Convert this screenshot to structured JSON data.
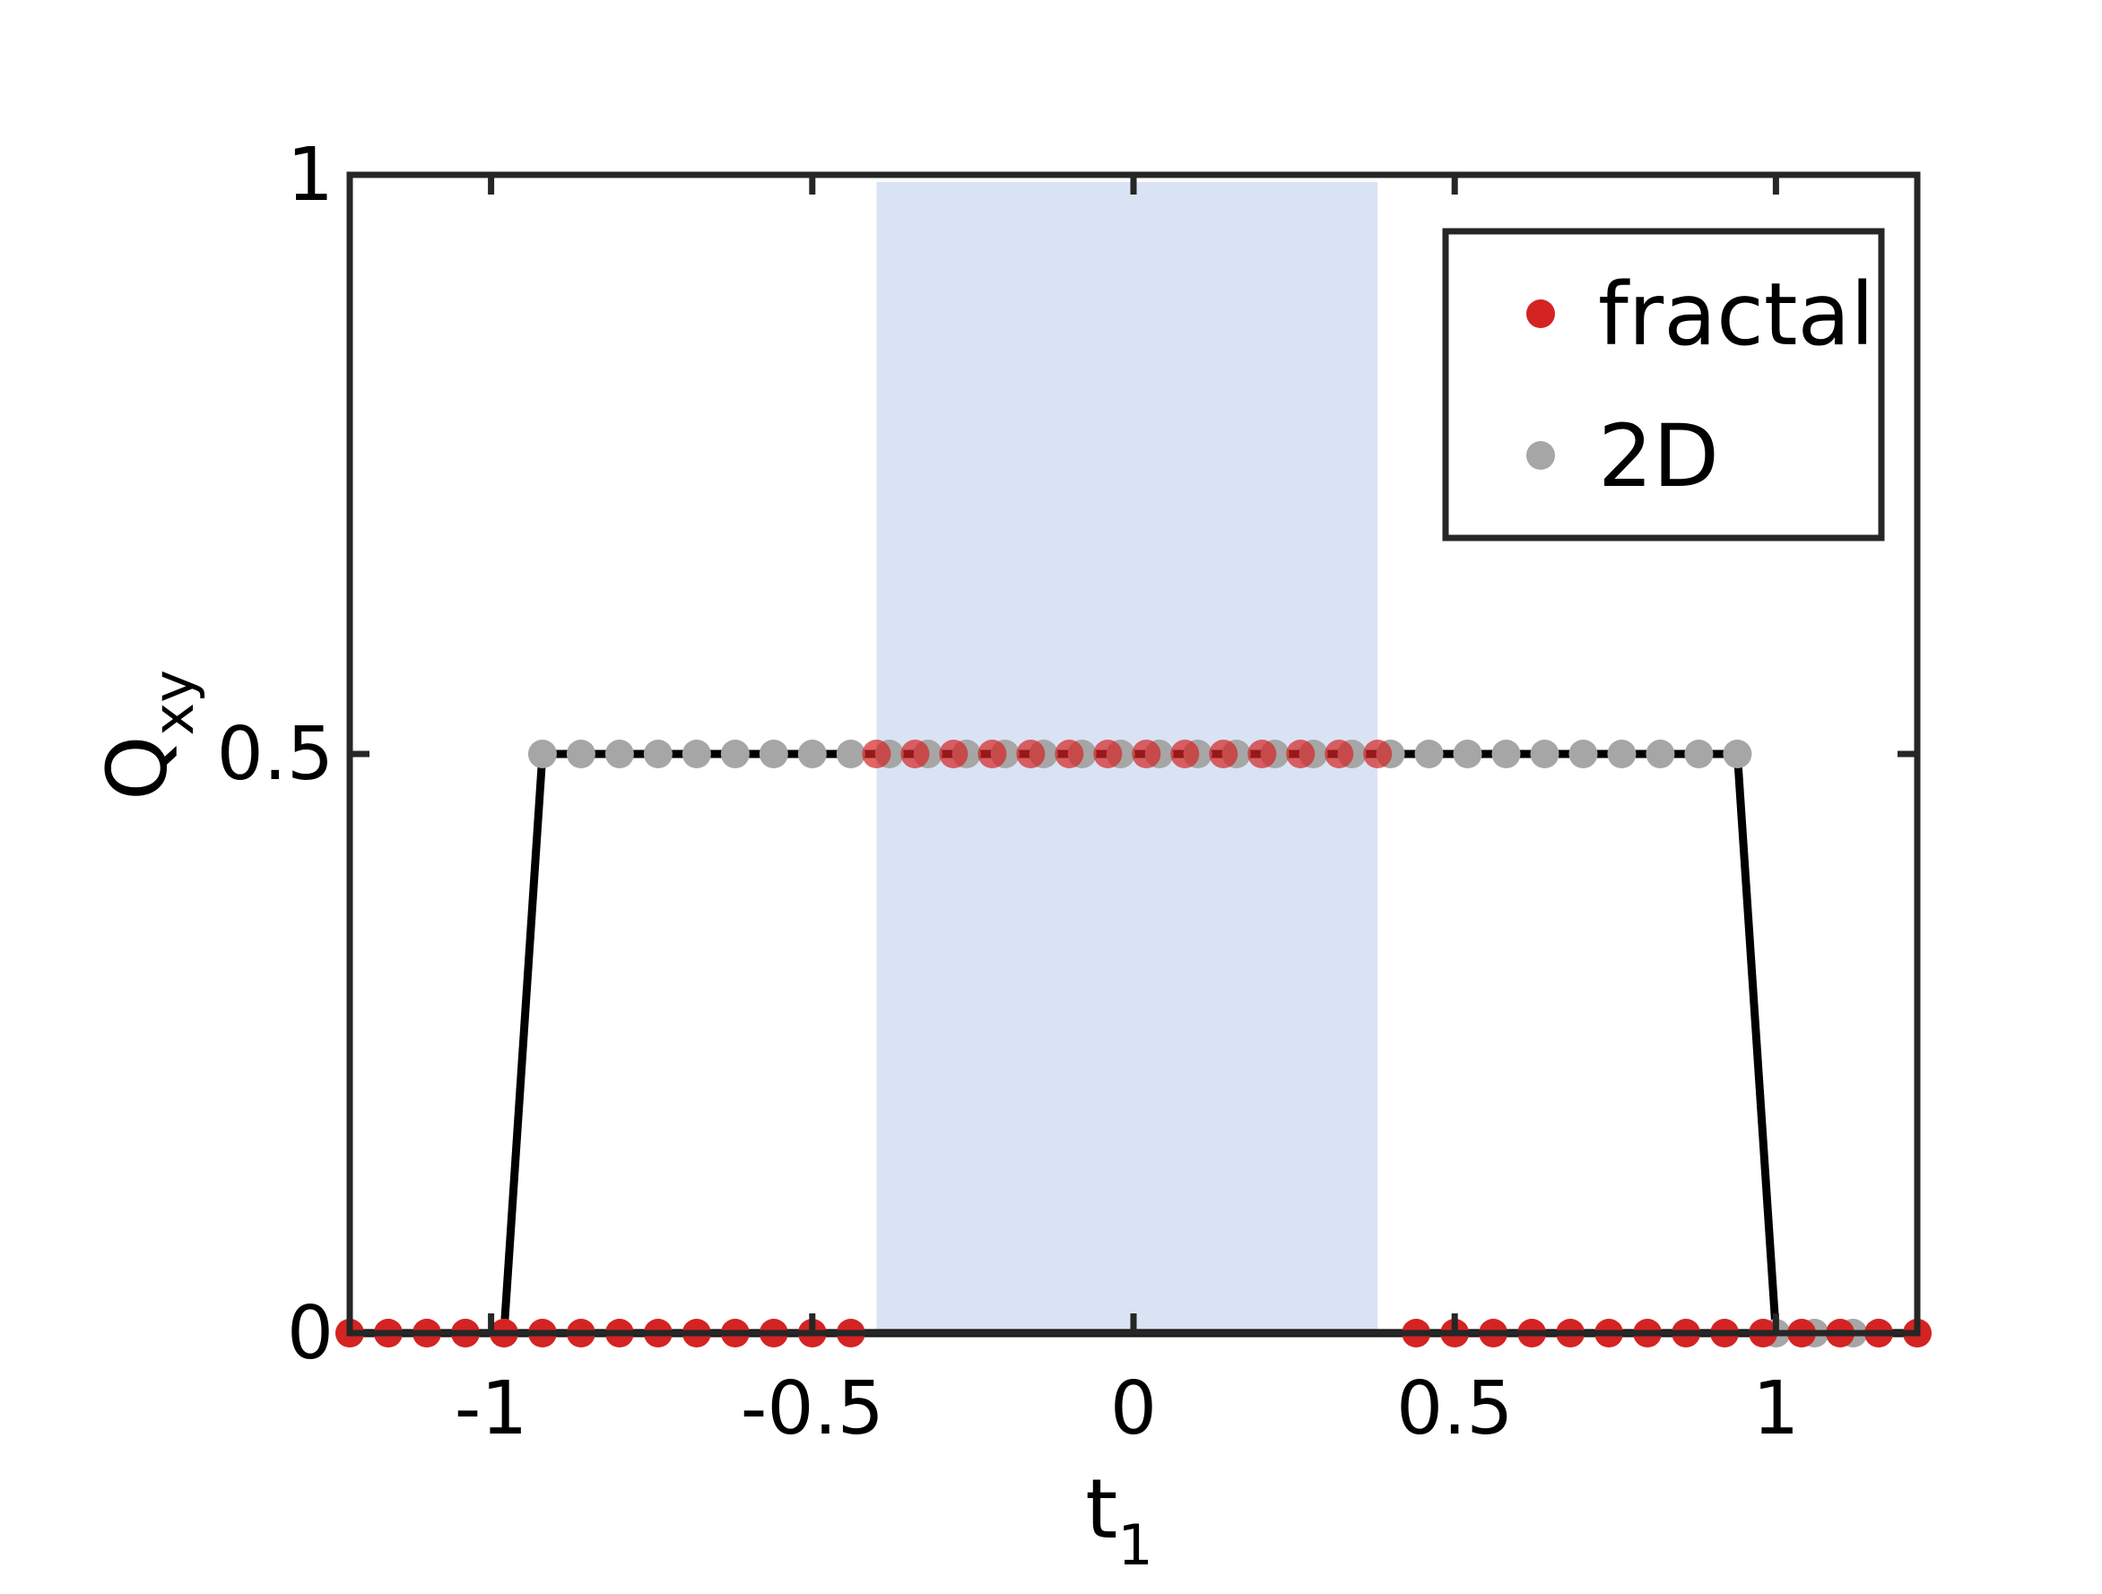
{
  "chart_data": {
    "type": "scatter",
    "xlabel": "t",
    "xlabel_sub": "1",
    "ylabel": "Q",
    "ylabel_sub": "xy",
    "xlim": [
      -1.22,
      1.22
    ],
    "ylim": [
      0,
      1
    ],
    "xticks": [
      -1,
      -0.5,
      0,
      0.5,
      1
    ],
    "xtick_labels": [
      "-1",
      "-0.5",
      "0",
      "0.5",
      "1"
    ],
    "yticks": [
      0,
      0.5,
      1
    ],
    "ytick_labels": [
      "0",
      "0.5",
      "1"
    ],
    "grid": false,
    "legend_position": "top-right",
    "shaded_region": {
      "x": [
        -0.4,
        0.38
      ],
      "color": "#dae3f3"
    },
    "series": [
      {
        "name": "fractal",
        "color": "#d42323",
        "line": false,
        "x": [
          -1.22,
          -1.16,
          -1.1,
          -1.04,
          -0.98,
          -0.92,
          -0.86,
          -0.8,
          -0.74,
          -0.68,
          -0.62,
          -0.56,
          -0.5,
          -0.44,
          -0.4,
          -0.34,
          -0.28,
          -0.22,
          -0.16,
          -0.1,
          -0.04,
          0.02,
          0.08,
          0.14,
          0.2,
          0.26,
          0.32,
          0.38,
          0.44,
          0.5,
          0.56,
          0.62,
          0.68,
          0.74,
          0.8,
          0.86,
          0.92,
          0.98,
          1.04,
          1.1,
          1.16,
          1.22
        ],
        "y": [
          0,
          0,
          0,
          0,
          0,
          0,
          0,
          0,
          0,
          0,
          0,
          0,
          0,
          0,
          0.5,
          0.5,
          0.5,
          0.5,
          0.5,
          0.5,
          0.5,
          0.5,
          0.5,
          0.5,
          0.5,
          0.5,
          0.5,
          0.5,
          0,
          0,
          0,
          0,
          0,
          0,
          0,
          0,
          0,
          0,
          0,
          0,
          0,
          0
        ]
      },
      {
        "name": "2D",
        "color": "#a6a6a6",
        "line": true,
        "line_color": "#000000",
        "x": [
          -1.22,
          -1.16,
          -1.1,
          -1.04,
          -0.98,
          -0.92,
          -0.86,
          -0.8,
          -0.74,
          -0.68,
          -0.62,
          -0.56,
          -0.5,
          -0.44,
          -0.38,
          -0.32,
          -0.26,
          -0.2,
          -0.14,
          -0.08,
          -0.02,
          0.04,
          0.1,
          0.16,
          0.22,
          0.28,
          0.34,
          0.4,
          0.46,
          0.52,
          0.58,
          0.64,
          0.7,
          0.76,
          0.82,
          0.88,
          0.94,
          1.0,
          1.06,
          1.12,
          1.16,
          1.22
        ],
        "y": [
          0,
          0,
          0,
          0,
          0,
          0.5,
          0.5,
          0.5,
          0.5,
          0.5,
          0.5,
          0.5,
          0.5,
          0.5,
          0.5,
          0.5,
          0.5,
          0.5,
          0.5,
          0.5,
          0.5,
          0.5,
          0.5,
          0.5,
          0.5,
          0.5,
          0.5,
          0.5,
          0.5,
          0.5,
          0.5,
          0.5,
          0.5,
          0.5,
          0.5,
          0.5,
          0.5,
          0,
          0,
          0,
          0,
          0
        ]
      }
    ]
  }
}
